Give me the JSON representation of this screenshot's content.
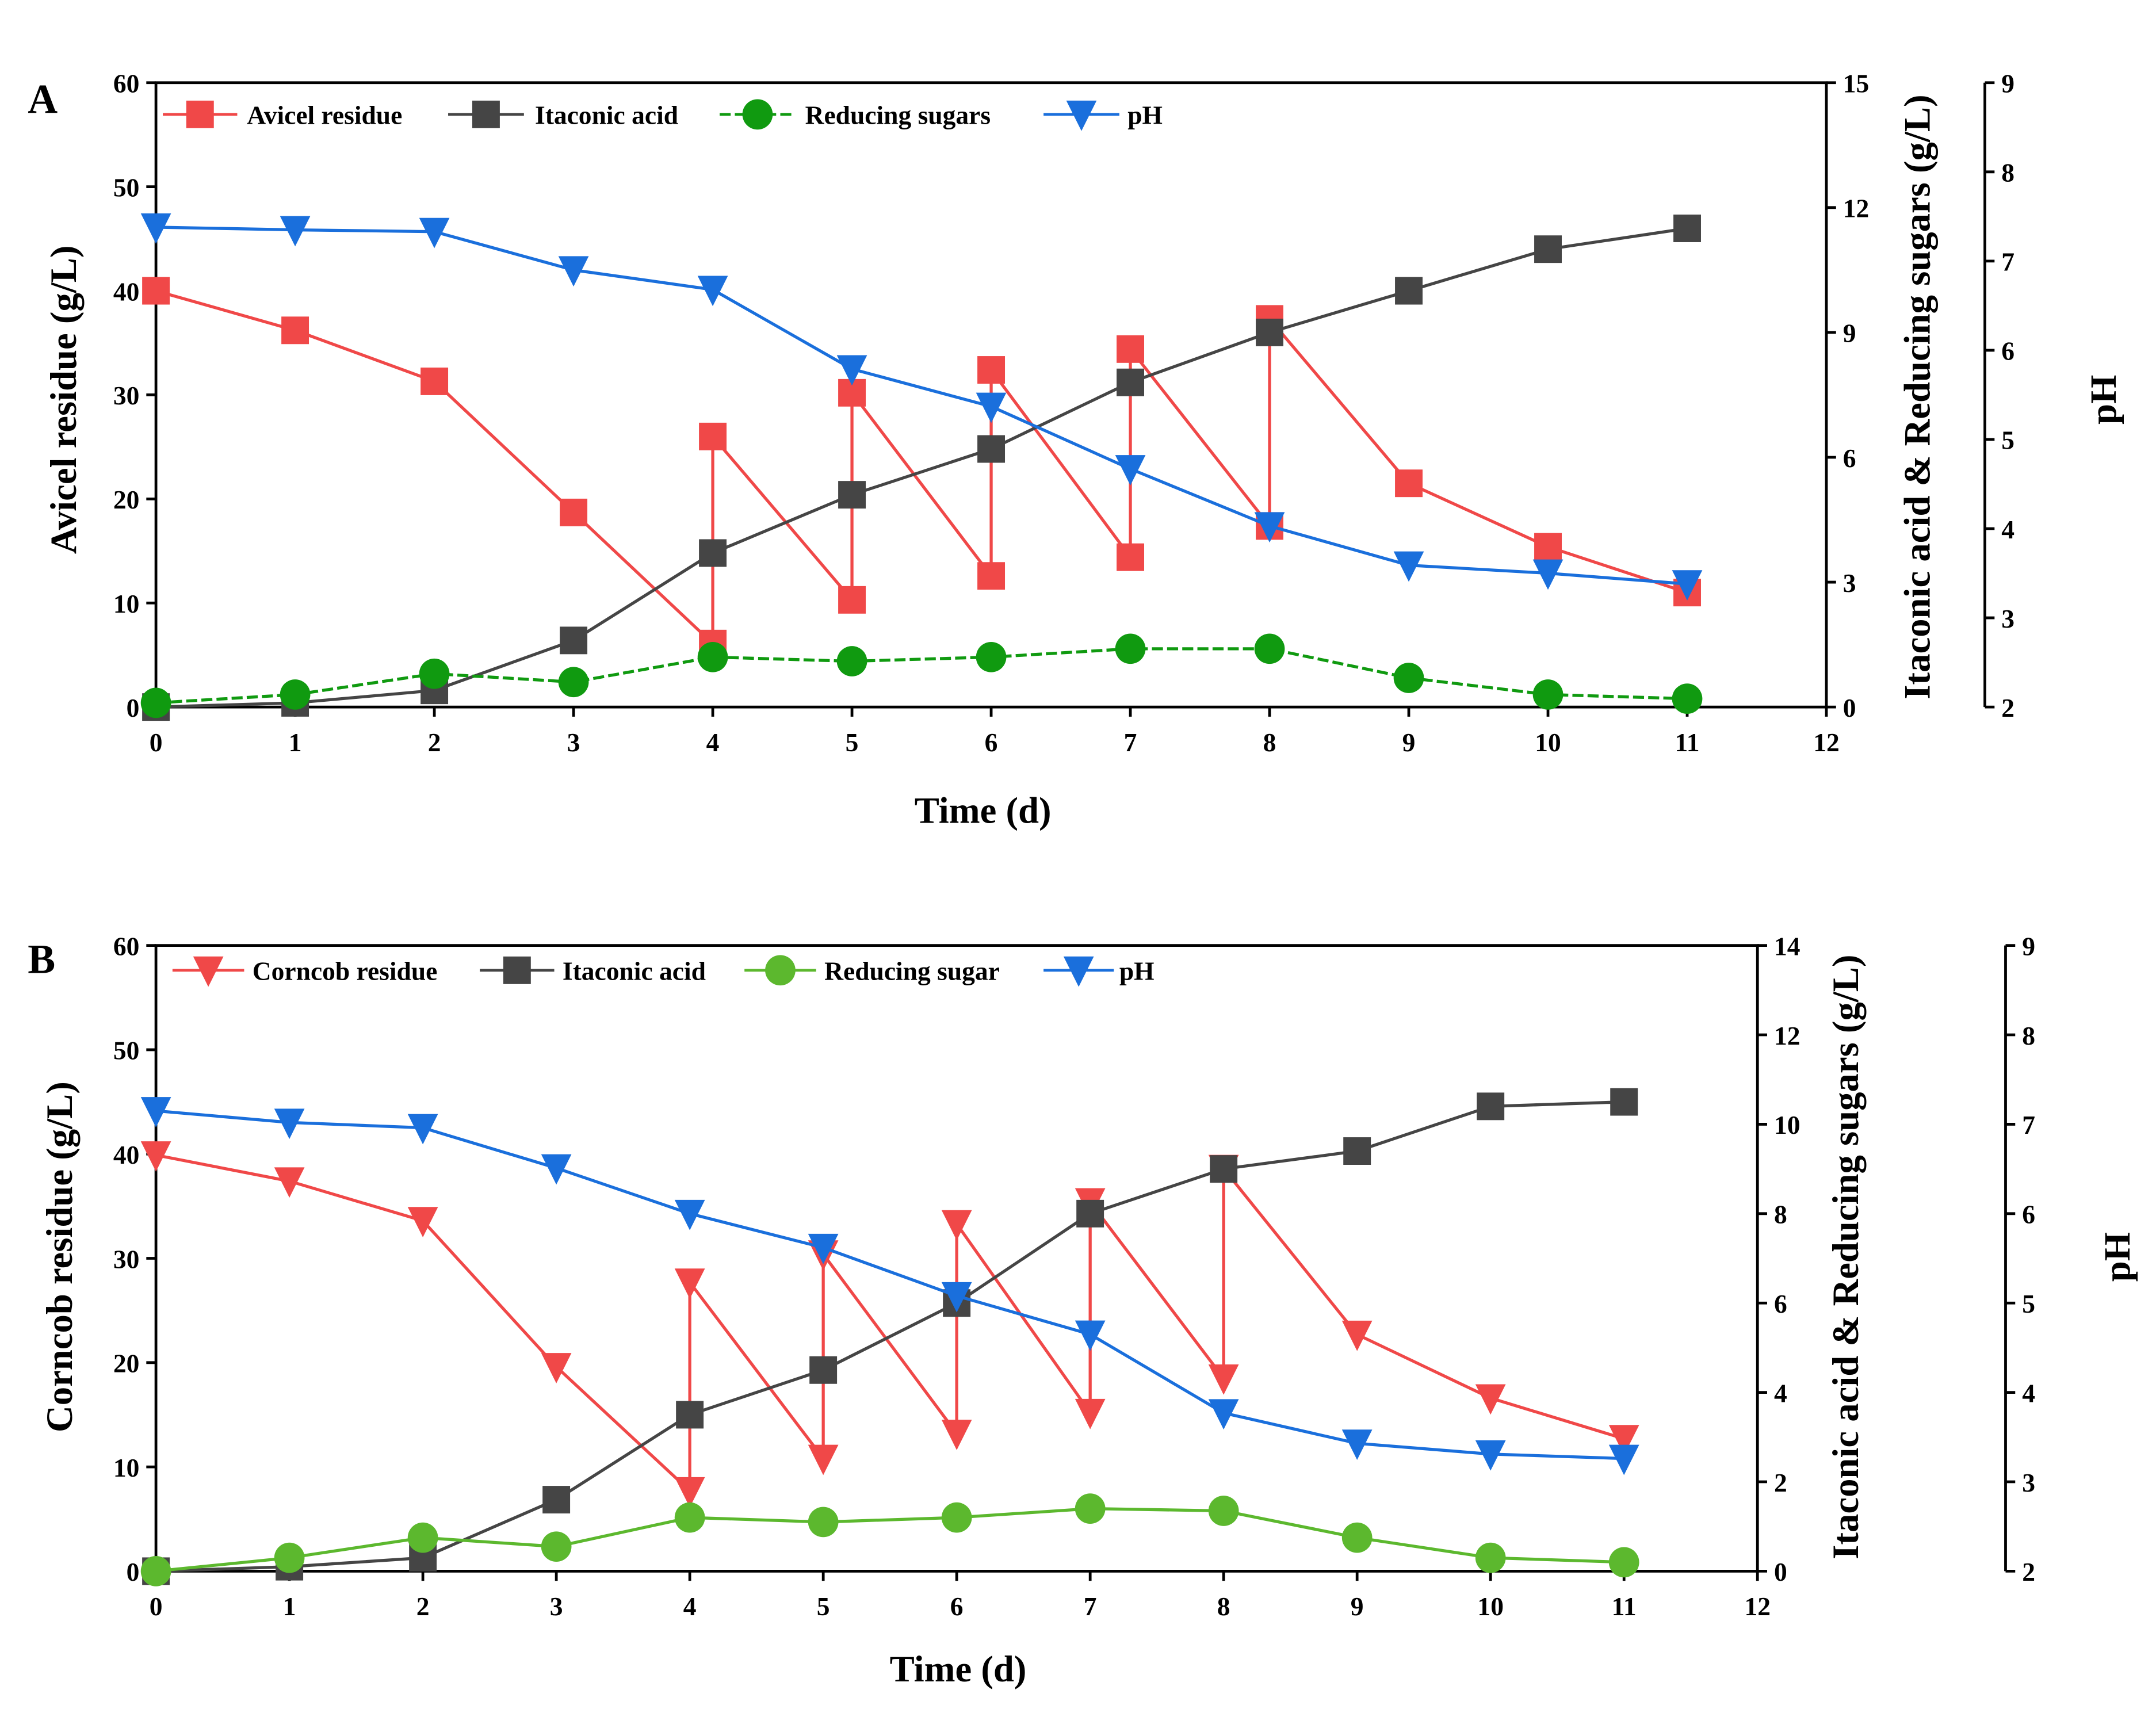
{
  "chart_data": [
    {
      "type": "line",
      "panel_label": "A",
      "xlabel": "Time (d)",
      "ylabel": "Avicel residue (g/L)",
      "y2label": "Itaconic acid & Reducing sugars  (g/L)",
      "y3label": "pH",
      "xlim": [
        0,
        12
      ],
      "ylim": [
        0,
        60
      ],
      "y2lim": [
        0,
        15
      ],
      "y3lim": [
        2,
        9
      ],
      "xticks": [
        0,
        1,
        2,
        3,
        4,
        5,
        6,
        7,
        8,
        9,
        10,
        11,
        12
      ],
      "yticks": [
        0,
        10,
        20,
        30,
        40,
        50,
        60
      ],
      "y2ticks": [
        0,
        3,
        6,
        9,
        12,
        15
      ],
      "y3ticks": [
        2,
        3,
        4,
        5,
        6,
        7,
        8,
        9
      ],
      "legend_position": "top-left",
      "series": [
        {
          "name": "Avicel residue",
          "axis": "left",
          "marker": "square",
          "color": "#f04848",
          "x": [
            0,
            1,
            2,
            3,
            4,
            4,
            5,
            5,
            6,
            6,
            7,
            7,
            8,
            8,
            9,
            10,
            11
          ],
          "values": [
            40,
            36.2,
            31.3,
            18.7,
            6.1,
            26,
            10.3,
            30.2,
            12.6,
            32.4,
            14.4,
            34.4,
            17.4,
            37.3,
            21.5,
            15.4,
            11
          ]
        },
        {
          "name": "Itaconic acid",
          "axis": "right",
          "marker": "square",
          "color": "#454545",
          "x": [
            0,
            1,
            2,
            3,
            4,
            5,
            6,
            7,
            8,
            9,
            10,
            11
          ],
          "values": [
            0,
            0.1,
            0.4,
            1.6,
            3.7,
            5.1,
            6.2,
            7.8,
            9.0,
            10.0,
            11.0,
            11.5
          ]
        },
        {
          "name": "Reducing sugars",
          "axis": "right",
          "marker": "circle",
          "color": "#109a10",
          "dashed": true,
          "x": [
            0,
            1,
            2,
            3,
            4,
            5,
            6,
            7,
            8,
            9,
            10,
            11
          ],
          "values": [
            0.1,
            0.3,
            0.8,
            0.6,
            1.2,
            1.1,
            1.2,
            1.4,
            1.4,
            0.7,
            0.3,
            0.2
          ]
        },
        {
          "name": "pH",
          "axis": "ph",
          "marker": "triangle-down",
          "color": "#1a6fdc",
          "x": [
            0,
            1,
            2,
            3,
            4,
            5,
            6,
            7,
            8,
            9,
            10,
            11
          ],
          "values": [
            7.38,
            7.35,
            7.33,
            6.9,
            6.68,
            5.79,
            5.37,
            4.67,
            4.03,
            3.59,
            3.5,
            3.38
          ]
        }
      ]
    },
    {
      "type": "line",
      "panel_label": "B",
      "xlabel": "Time (d)",
      "ylabel": "Corncob residue (g/L)",
      "y2label": "Itaconic acid & Reducing sugars  (g/L)",
      "y3label": "pH",
      "xlim": [
        0,
        12
      ],
      "ylim": [
        0,
        60
      ],
      "y2lim": [
        0,
        14
      ],
      "y3lim": [
        2,
        9
      ],
      "xticks": [
        0,
        1,
        2,
        3,
        4,
        5,
        6,
        7,
        8,
        9,
        10,
        11,
        12
      ],
      "yticks": [
        0,
        10,
        20,
        30,
        40,
        50,
        60
      ],
      "y2ticks": [
        0,
        2,
        4,
        6,
        8,
        10,
        12,
        14
      ],
      "y3ticks": [
        2,
        3,
        4,
        5,
        6,
        7,
        8,
        9
      ],
      "legend_position": "top-left",
      "series": [
        {
          "name": "Corncob residue",
          "axis": "left",
          "marker": "triangle-down",
          "color": "#f04848",
          "x": [
            0,
            1,
            2,
            3,
            4,
            4,
            5,
            5,
            6,
            6,
            7,
            7,
            8,
            8,
            9,
            10,
            11
          ],
          "values": [
            39.9,
            37.4,
            33.6,
            19.6,
            7.7,
            27.7,
            10.8,
            30.4,
            13.2,
            33.3,
            15.2,
            35.4,
            18.5,
            38.6,
            22.7,
            16.6,
            12.7
          ]
        },
        {
          "name": "Itaconic acid",
          "axis": "right",
          "marker": "square",
          "color": "#454545",
          "x": [
            0,
            1,
            2,
            3,
            4,
            5,
            6,
            7,
            8,
            9,
            10,
            11
          ],
          "values": [
            0,
            0.1,
            0.3,
            1.6,
            3.5,
            4.5,
            6.0,
            8.0,
            9.0,
            9.4,
            10.4,
            10.5
          ]
        },
        {
          "name": "Reducing sugar",
          "axis": "right",
          "marker": "circle",
          "color": "#5cb82e",
          "x": [
            0,
            1,
            2,
            3,
            4,
            5,
            6,
            7,
            8,
            9,
            10,
            11
          ],
          "values": [
            0,
            0.3,
            0.75,
            0.55,
            1.2,
            1.1,
            1.2,
            1.4,
            1.35,
            0.75,
            0.3,
            0.2
          ]
        },
        {
          "name": "pH",
          "axis": "ph",
          "marker": "triangle-down",
          "color": "#1a6fdc",
          "x": [
            0,
            1,
            2,
            3,
            4,
            5,
            6,
            7,
            8,
            9,
            10,
            11
          ],
          "values": [
            7.15,
            7.02,
            6.96,
            6.51,
            6.0,
            5.62,
            5.08,
            4.65,
            3.77,
            3.43,
            3.31,
            3.26
          ]
        }
      ]
    }
  ]
}
